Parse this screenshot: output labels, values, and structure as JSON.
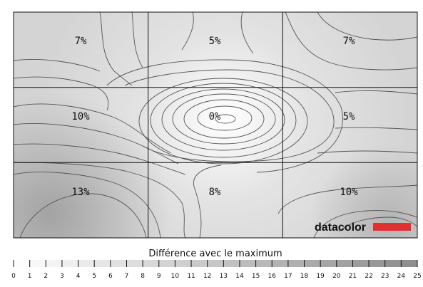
{
  "chart_data": {
    "type": "heatmap",
    "rows": 3,
    "cols": 3,
    "values": [
      [
        7,
        5,
        7
      ],
      [
        10,
        0,
        5
      ],
      [
        13,
        8,
        10
      ]
    ],
    "labels": [
      [
        "7%",
        "5%",
        "7%"
      ],
      [
        "10%",
        "0%",
        "5%"
      ],
      [
        "13%",
        "8%",
        "10%"
      ]
    ],
    "legend_title": "Différence avec le maximum",
    "scale_min": 0,
    "scale_max": 25,
    "ticks": [
      "0",
      "1",
      "2",
      "3",
      "4",
      "5",
      "6",
      "7",
      "8",
      "9",
      "10",
      "11",
      "12",
      "13",
      "14",
      "15",
      "16",
      "17",
      "18",
      "19",
      "20",
      "21",
      "22",
      "23",
      "24",
      "25"
    ],
    "colors": {
      "max_gray": "#8c8c8c",
      "min_gray": "#ffffff",
      "contour": "#555555",
      "grid": "#111111",
      "brand_red": "#e03030"
    }
  },
  "brand": {
    "name": "datacolor"
  }
}
